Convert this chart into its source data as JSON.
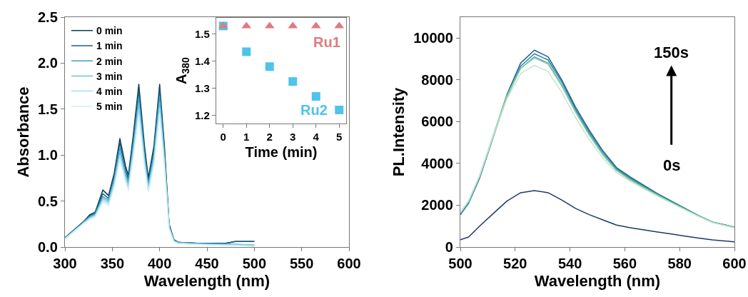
{
  "chart_data": [
    {
      "type": "line",
      "xlabel": "Wavelength (nm)",
      "ylabel": "Absorbance",
      "xlim": [
        300,
        600
      ],
      "ylim": [
        0,
        2.5
      ],
      "xticks": [
        300,
        350,
        400,
        450,
        500,
        550,
        600
      ],
      "yticks": [
        {
          "value": 0,
          "label": "0.0"
        },
        0.5,
        {
          "value": 1,
          "label": "1.0"
        },
        1.5,
        {
          "value": 2,
          "label": "2.0"
        },
        2.5
      ],
      "legend": "top left",
      "x": [
        300,
        310,
        320,
        326,
        332,
        340,
        346,
        352,
        358,
        364,
        367,
        372,
        378,
        384,
        388,
        394,
        400,
        405,
        410,
        415,
        420,
        440,
        470,
        480,
        500
      ],
      "series": [
        {
          "name": "0 min",
          "color": "#0d3b4f",
          "values": [
            0.1,
            0.19,
            0.28,
            0.35,
            0.38,
            0.62,
            0.56,
            0.8,
            1.18,
            0.88,
            0.78,
            1.2,
            1.77,
            1.1,
            0.75,
            1.1,
            1.77,
            1.1,
            0.25,
            0.08,
            0.05,
            0.04,
            0.04,
            0.06,
            0.06
          ]
        },
        {
          "name": "1 min",
          "color": "#1a5f7f",
          "values": [
            0.1,
            0.19,
            0.28,
            0.34,
            0.37,
            0.58,
            0.53,
            0.77,
            1.13,
            0.84,
            0.74,
            1.15,
            1.7,
            1.05,
            0.71,
            1.06,
            1.72,
            1.06,
            0.24,
            0.08,
            0.05,
            0.04,
            0.04,
            0.06,
            0.06
          ]
        },
        {
          "name": "2 min",
          "color": "#3aa0c8",
          "values": [
            0.1,
            0.18,
            0.27,
            0.33,
            0.36,
            0.55,
            0.51,
            0.74,
            1.08,
            0.8,
            0.71,
            1.1,
            1.63,
            1.0,
            0.68,
            1.01,
            1.64,
            1.01,
            0.23,
            0.07,
            0.05,
            0.04,
            0.03,
            0.03,
            0.02
          ]
        },
        {
          "name": "3 min",
          "color": "#6cc0dc",
          "values": [
            0.09,
            0.18,
            0.27,
            0.32,
            0.35,
            0.53,
            0.49,
            0.71,
            1.03,
            0.77,
            0.68,
            1.05,
            1.56,
            0.96,
            0.65,
            0.97,
            1.57,
            0.97,
            0.22,
            0.07,
            0.04,
            0.03,
            0.03,
            0.03,
            0.02
          ]
        },
        {
          "name": "4 min",
          "color": "#a8dbeb",
          "values": [
            0.09,
            0.18,
            0.26,
            0.31,
            0.34,
            0.51,
            0.47,
            0.68,
            0.99,
            0.74,
            0.65,
            1.01,
            1.5,
            0.92,
            0.62,
            0.93,
            1.51,
            0.93,
            0.21,
            0.06,
            0.04,
            0.03,
            0.02,
            0.02,
            0.01
          ]
        },
        {
          "name": "5 min",
          "color": "#d4eef7",
          "values": [
            0.09,
            0.17,
            0.26,
            0.3,
            0.33,
            0.49,
            0.45,
            0.65,
            0.95,
            0.71,
            0.62,
            0.97,
            1.43,
            0.88,
            0.6,
            0.89,
            1.45,
            0.89,
            0.2,
            0.06,
            0.04,
            0.03,
            0.02,
            0.02,
            0.01
          ]
        }
      ]
    },
    {
      "type": "scatter",
      "xlabel": "Time (min)",
      "ylabel": "A$_{380}$",
      "xlim": [
        -0.3,
        5.3
      ],
      "ylim": [
        1.17,
        1.56
      ],
      "xticks": [
        0,
        1,
        2,
        3,
        4,
        5
      ],
      "yticks": [
        1.2,
        1.3,
        1.4,
        1.5
      ],
      "x": [
        0,
        1,
        2,
        3,
        4,
        5
      ],
      "series": [
        {
          "name": "Ru1",
          "color": "#e07a80",
          "marker": "triangle",
          "values": [
            1.53,
            1.53,
            1.53,
            1.53,
            1.53,
            1.53
          ]
        },
        {
          "name": "Ru2",
          "color": "#4fc3ea",
          "marker": "square",
          "values": [
            1.53,
            1.435,
            1.38,
            1.325,
            1.27,
            1.22
          ]
        }
      ]
    },
    {
      "type": "line",
      "xlabel": "Wavelength (nm)",
      "ylabel": "PL.Intensity",
      "xlim": [
        500,
        600
      ],
      "ylim": [
        0,
        11000
      ],
      "xticks": [
        500,
        520,
        540,
        560,
        580,
        600
      ],
      "yticks": [
        0,
        2000,
        4000,
        6000,
        8000,
        10000
      ],
      "annotations": [
        "150s",
        "0s"
      ],
      "x": [
        500,
        503,
        507,
        512,
        517,
        522,
        527,
        532,
        537,
        542,
        547,
        552,
        557,
        562,
        567,
        572,
        577,
        582,
        587,
        592,
        600
      ],
      "series": [
        {
          "color": "#1f5f8b",
          "values": [
            1550,
            2100,
            3300,
            5300,
            7300,
            8800,
            9420,
            9100,
            8000,
            6700,
            5600,
            4600,
            3800,
            3350,
            2950,
            2550,
            2200,
            1850,
            1500,
            1200,
            950
          ]
        },
        {
          "color": "#2d7fa8",
          "values": [
            1550,
            2100,
            3300,
            5250,
            7200,
            8650,
            9250,
            8950,
            7900,
            6600,
            5500,
            4550,
            3750,
            3300,
            2900,
            2520,
            2180,
            1830,
            1480,
            1190,
            950
          ]
        },
        {
          "color": "#4aa3a0",
          "values": [
            1600,
            2150,
            3350,
            5300,
            7200,
            8550,
            9100,
            8800,
            7750,
            6500,
            5400,
            4450,
            3700,
            3250,
            2870,
            2500,
            2150,
            1820,
            1480,
            1190,
            940
          ]
        },
        {
          "color": "#8fcfa8",
          "values": [
            1650,
            2200,
            3400,
            5350,
            7250,
            8550,
            9050,
            8750,
            7700,
            6450,
            5350,
            4400,
            3650,
            3200,
            2830,
            2470,
            2130,
            1800,
            1470,
            1180,
            930
          ]
        },
        {
          "color": "#c4e6cc",
          "values": [
            1650,
            2200,
            3400,
            5300,
            7100,
            8300,
            8700,
            8400,
            7400,
            6200,
            5150,
            4250,
            3550,
            3150,
            2780,
            2430,
            2100,
            1780,
            1460,
            1170,
            920
          ]
        },
        {
          "color": "#1b3a6b",
          "values": [
            350,
            480,
            1000,
            1600,
            2200,
            2600,
            2700,
            2600,
            2250,
            1850,
            1550,
            1300,
            1050,
            920,
            820,
            720,
            620,
            520,
            430,
            340,
            250
          ]
        }
      ]
    }
  ]
}
